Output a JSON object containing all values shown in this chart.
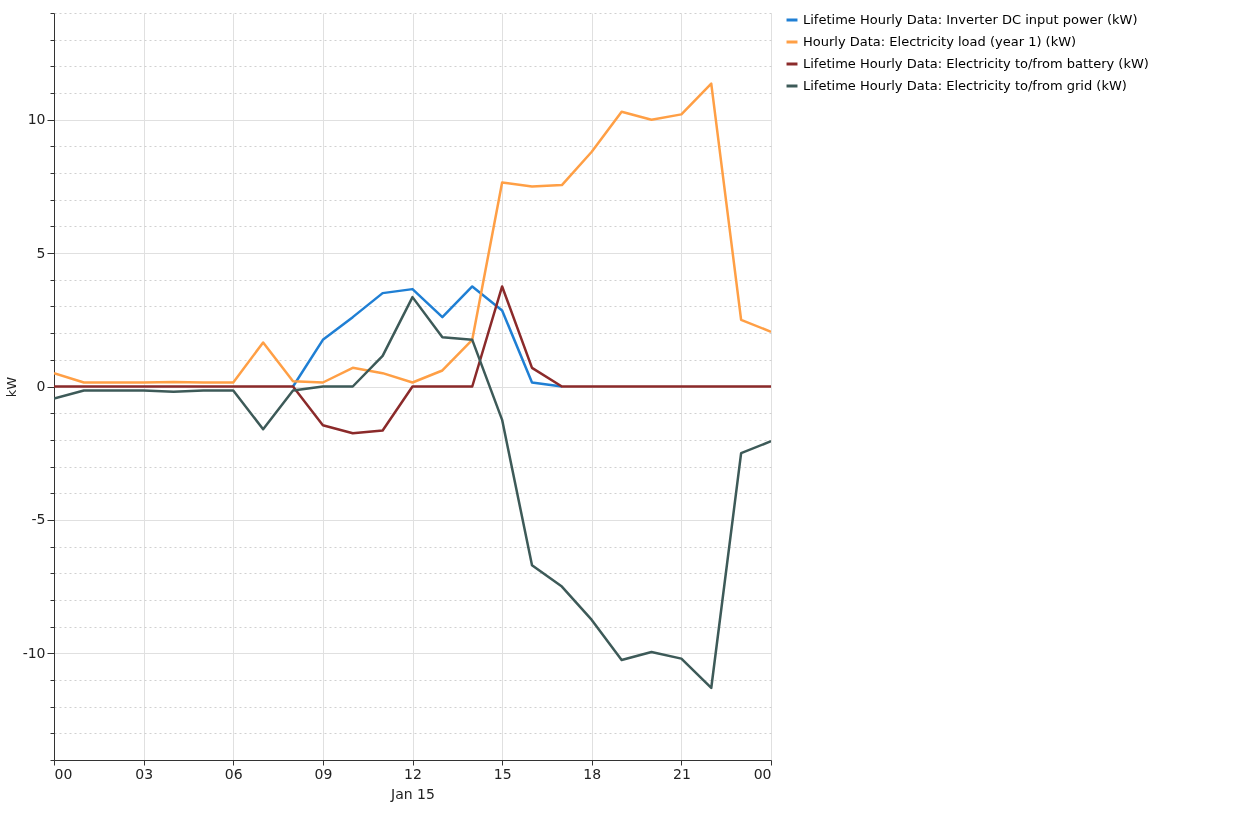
{
  "chart_data": {
    "type": "line",
    "xlabel": "Jan 15",
    "ylabel": "kW",
    "x": [
      0,
      1,
      2,
      3,
      4,
      5,
      6,
      7,
      8,
      9,
      10,
      11,
      12,
      13,
      14,
      15,
      16,
      17,
      18,
      19,
      20,
      21,
      22,
      23,
      24
    ],
    "xlim": [
      0,
      24
    ],
    "xticks": [
      {
        "value": 0,
        "label": "00"
      },
      {
        "value": 3,
        "label": "03"
      },
      {
        "value": 6,
        "label": "06"
      },
      {
        "value": 9,
        "label": "09"
      },
      {
        "value": 12,
        "label": "12"
      },
      {
        "value": 15,
        "label": "15"
      },
      {
        "value": 18,
        "label": "18"
      },
      {
        "value": 21,
        "label": "21"
      },
      {
        "value": 24,
        "label": "00"
      }
    ],
    "ylim": [
      -14,
      14
    ],
    "yticks": [
      {
        "value": -14,
        "label": null
      },
      {
        "value": -13,
        "label": null
      },
      {
        "value": -12,
        "label": null
      },
      {
        "value": -11,
        "label": null
      },
      -10,
      {
        "value": -9,
        "label": null
      },
      {
        "value": -8,
        "label": null
      },
      {
        "value": -7,
        "label": null
      },
      {
        "value": -6,
        "label": null
      },
      -5,
      {
        "value": -4,
        "label": null
      },
      {
        "value": -3,
        "label": null
      },
      {
        "value": -2,
        "label": null
      },
      {
        "value": -1,
        "label": null
      },
      0,
      {
        "value": 1,
        "label": null
      },
      {
        "value": 2,
        "label": null
      },
      {
        "value": 3,
        "label": null
      },
      {
        "value": 4,
        "label": null
      },
      5,
      {
        "value": 6,
        "label": null
      },
      {
        "value": 7,
        "label": null
      },
      {
        "value": 8,
        "label": null
      },
      {
        "value": 9,
        "label": null
      },
      10,
      {
        "value": 11,
        "label": null
      },
      {
        "value": 12,
        "label": null
      },
      {
        "value": 13,
        "label": null
      },
      {
        "value": 14,
        "label": null
      }
    ],
    "grid": true,
    "legend": "top right",
    "marker": "none",
    "line_style": "solid",
    "series": [
      {
        "name": "Lifetime Hourly Data: Inverter DC input power (kW)",
        "color": "#1f7fd4",
        "values": [
          null,
          null,
          null,
          null,
          null,
          null,
          null,
          null,
          0,
          1.75,
          2.6,
          3.5,
          3.65,
          2.6,
          3.75,
          2.85,
          0.15,
          0,
          null,
          null,
          null,
          null,
          null,
          null,
          null
        ]
      },
      {
        "name": "Hourly Data: Electricity load (year 1) (kW)",
        "color": "#ff9f45",
        "values": [
          0.5,
          0.15,
          0.15,
          0.15,
          0.17,
          0.15,
          0.15,
          1.65,
          0.2,
          0.15,
          0.7,
          0.5,
          0.15,
          0.6,
          1.75,
          7.65,
          7.5,
          7.55,
          8.8,
          10.3,
          10,
          10.2,
          11.35,
          2.5,
          2.05
        ]
      },
      {
        "name": "Lifetime Hourly Data: Electricity to/from battery (kW)",
        "color": "#8b2a2a",
        "values": [
          0,
          0,
          0,
          0,
          0,
          0,
          0,
          0,
          0,
          -1.45,
          -1.75,
          -1.65,
          0,
          0,
          0,
          3.75,
          0.7,
          0,
          0,
          0,
          0,
          0,
          0,
          0,
          0
        ]
      },
      {
        "name": "Lifetime Hourly Data: Electricity to/from grid (kW)",
        "color": "#3d5a58",
        "values": [
          -0.45,
          -0.15,
          -0.15,
          -0.15,
          -0.2,
          -0.15,
          -0.15,
          -1.6,
          -0.15,
          0,
          0,
          1.15,
          3.35,
          1.85,
          1.75,
          -1.25,
          -6.7,
          -7.5,
          -8.75,
          -10.25,
          -9.95,
          -10.2,
          -11.3,
          -2.5,
          -2.05
        ]
      }
    ]
  }
}
